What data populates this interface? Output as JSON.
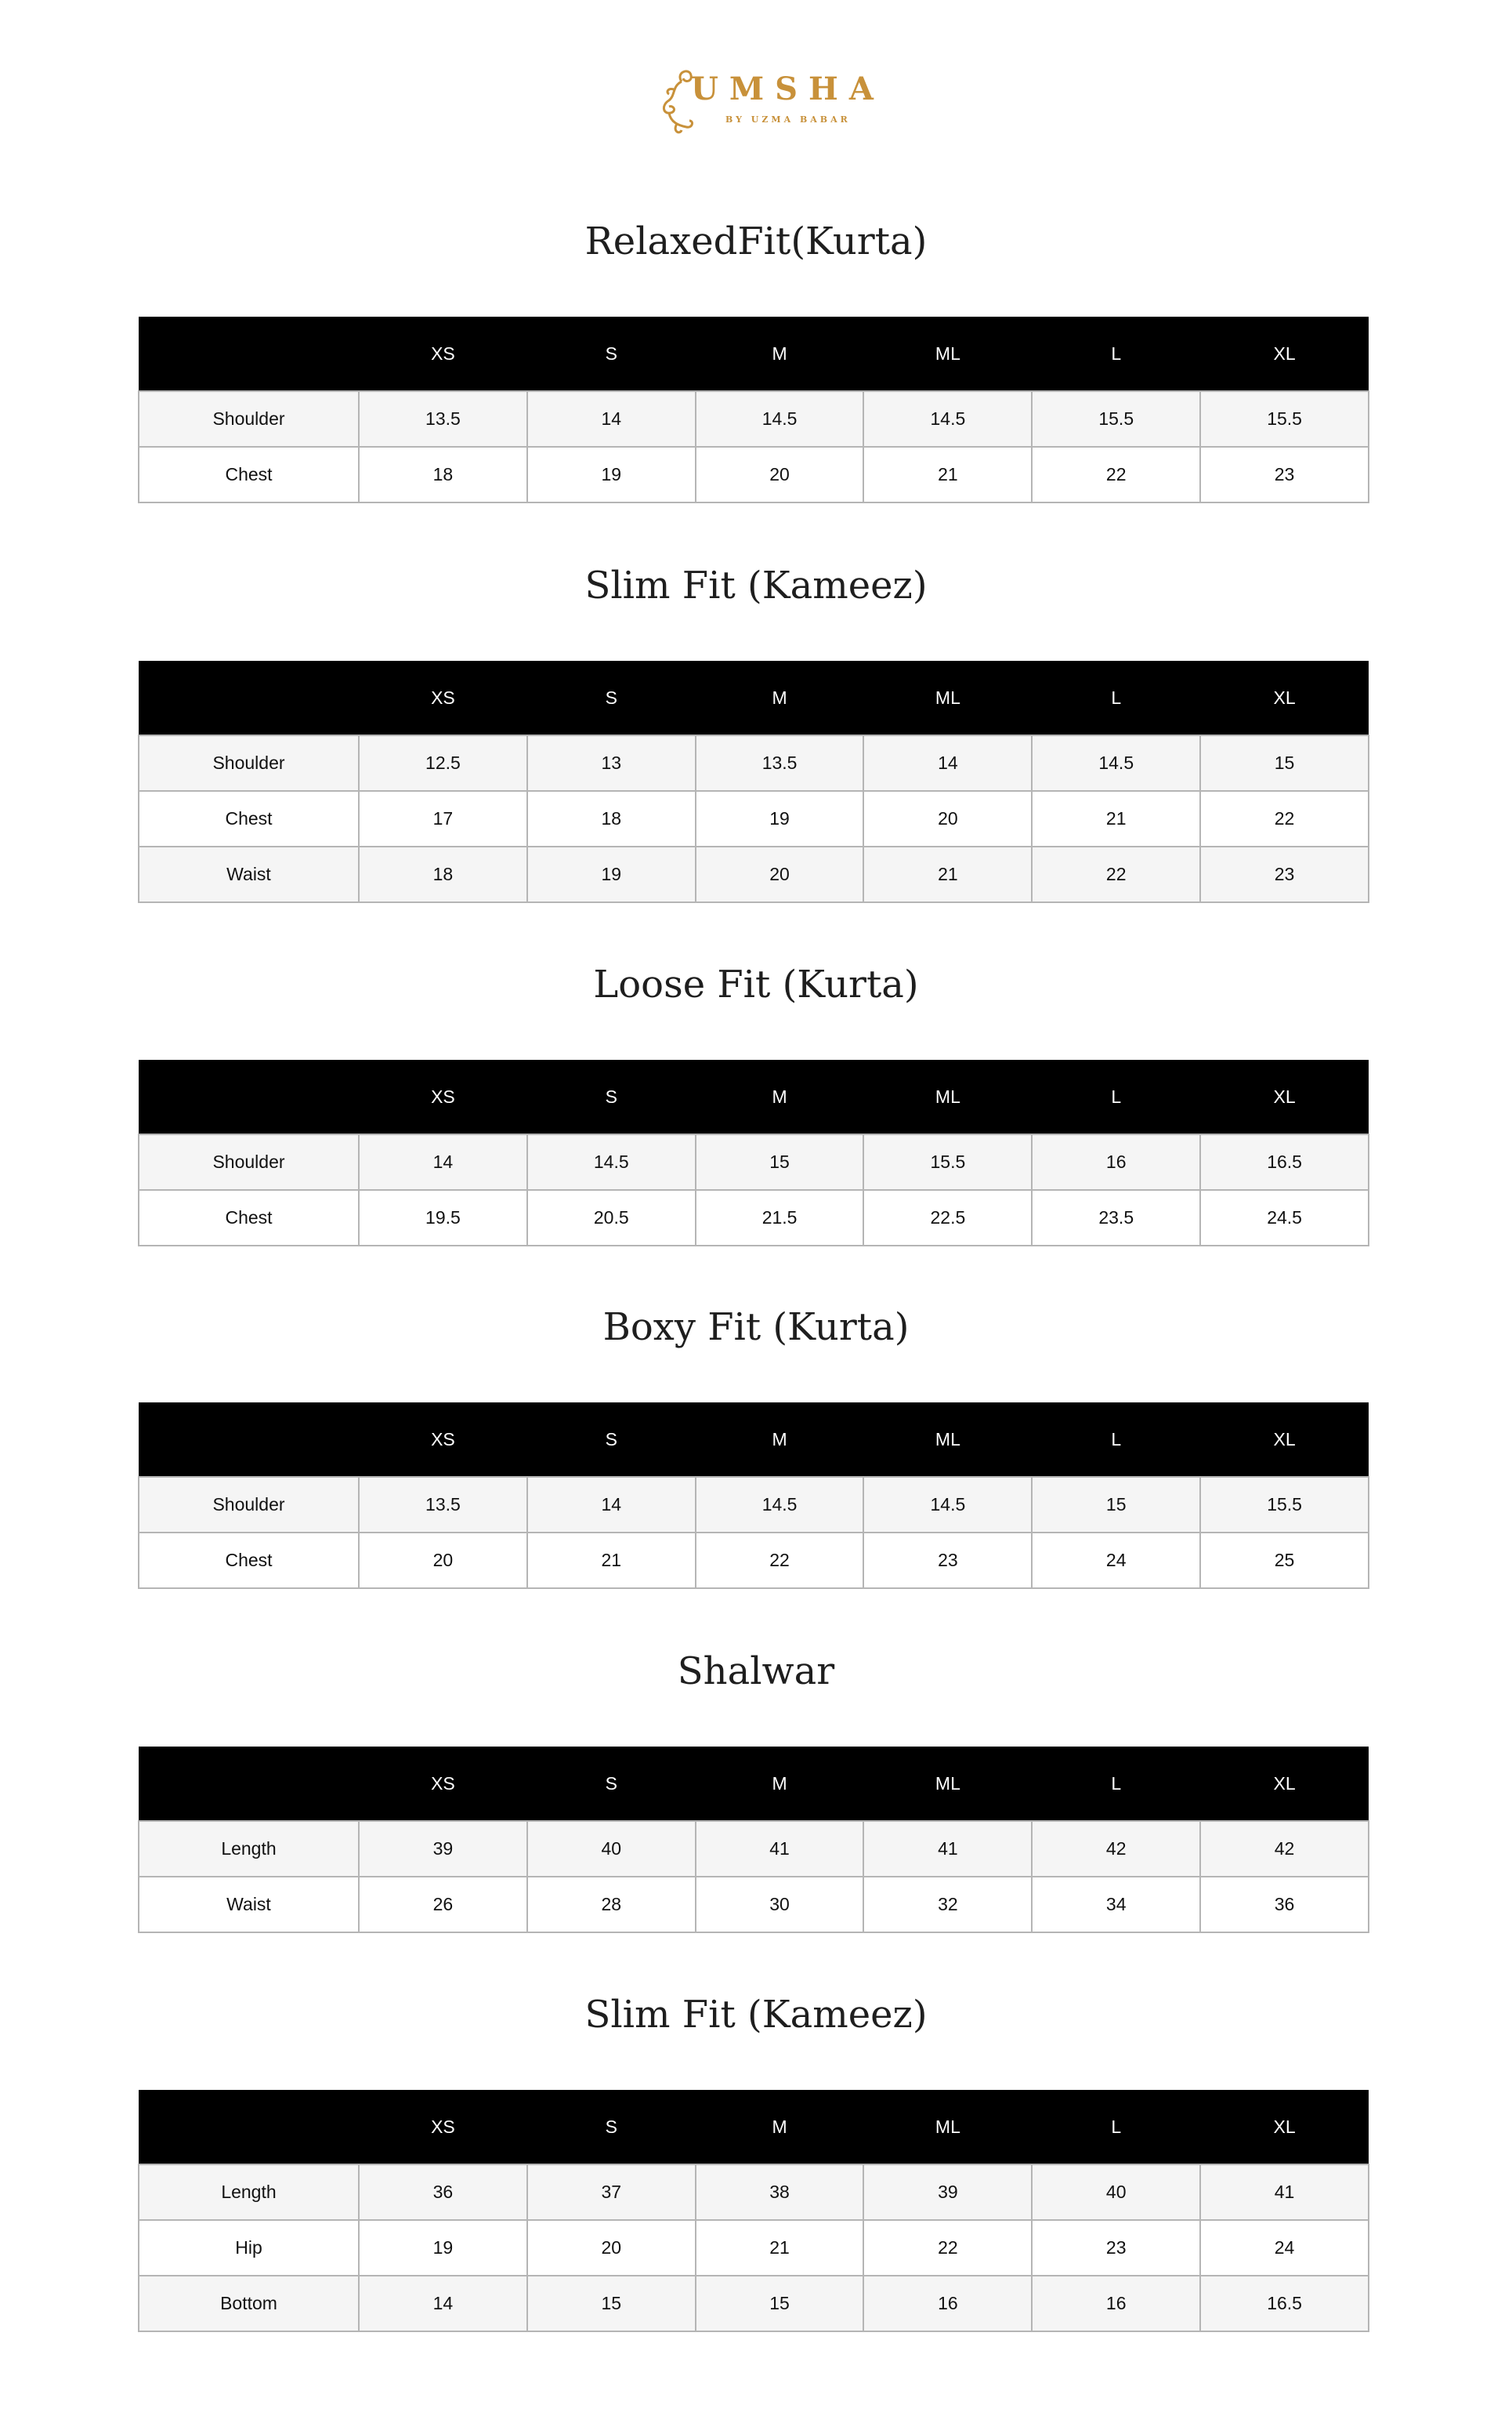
{
  "logo": {
    "brand": "UMSHA",
    "tagline": "BY UZMA BABAR",
    "color": "#c8913a"
  },
  "sizes": [
    "XS",
    "S",
    "M",
    "ML",
    "L",
    "XL"
  ],
  "tables": [
    {
      "title": "RelaxedFit(Kurta)",
      "rows": [
        {
          "label": "Shoulder",
          "values": [
            "13.5",
            "14",
            "14.5",
            "14.5",
            "15.5",
            "15.5"
          ]
        },
        {
          "label": "Chest",
          "values": [
            "18",
            "19",
            "20",
            "21",
            "22",
            "23"
          ]
        }
      ]
    },
    {
      "title": "Slim Fit (Kameez)",
      "rows": [
        {
          "label": "Shoulder",
          "values": [
            "12.5",
            "13",
            "13.5",
            "14",
            "14.5",
            "15"
          ]
        },
        {
          "label": "Chest",
          "values": [
            "17",
            "18",
            "19",
            "20",
            "21",
            "22"
          ]
        },
        {
          "label": "Waist",
          "values": [
            "18",
            "19",
            "20",
            "21",
            "22",
            "23"
          ]
        }
      ]
    },
    {
      "title": "Loose Fit (Kurta)",
      "rows": [
        {
          "label": "Shoulder",
          "values": [
            "14",
            "14.5",
            "15",
            "15.5",
            "16",
            "16.5"
          ]
        },
        {
          "label": "Chest",
          "values": [
            "19.5",
            "20.5",
            "21.5",
            "22.5",
            "23.5",
            "24.5"
          ]
        }
      ]
    },
    {
      "title": "Boxy Fit (Kurta)",
      "rows": [
        {
          "label": "Shoulder",
          "values": [
            "13.5",
            "14",
            "14.5",
            "14.5",
            "15",
            "15.5"
          ]
        },
        {
          "label": "Chest",
          "values": [
            "20",
            "21",
            "22",
            "23",
            "24",
            "25"
          ]
        }
      ]
    },
    {
      "title": "Shalwar",
      "rows": [
        {
          "label": "Length",
          "values": [
            "39",
            "40",
            "41",
            "41",
            "42",
            "42"
          ]
        },
        {
          "label": "Waist",
          "values": [
            "26",
            "28",
            "30",
            "32",
            "34",
            "36"
          ]
        }
      ]
    },
    {
      "title": "Slim Fit (Kameez)",
      "rows": [
        {
          "label": "Length",
          "values": [
            "36",
            "37",
            "38",
            "39",
            "40",
            "41"
          ]
        },
        {
          "label": "Hip",
          "values": [
            "19",
            "20",
            "21",
            "22",
            "23",
            "24"
          ]
        },
        {
          "label": "Bottom",
          "values": [
            "14",
            "15",
            "15",
            "16",
            "16",
            "16.5"
          ]
        }
      ]
    }
  ]
}
